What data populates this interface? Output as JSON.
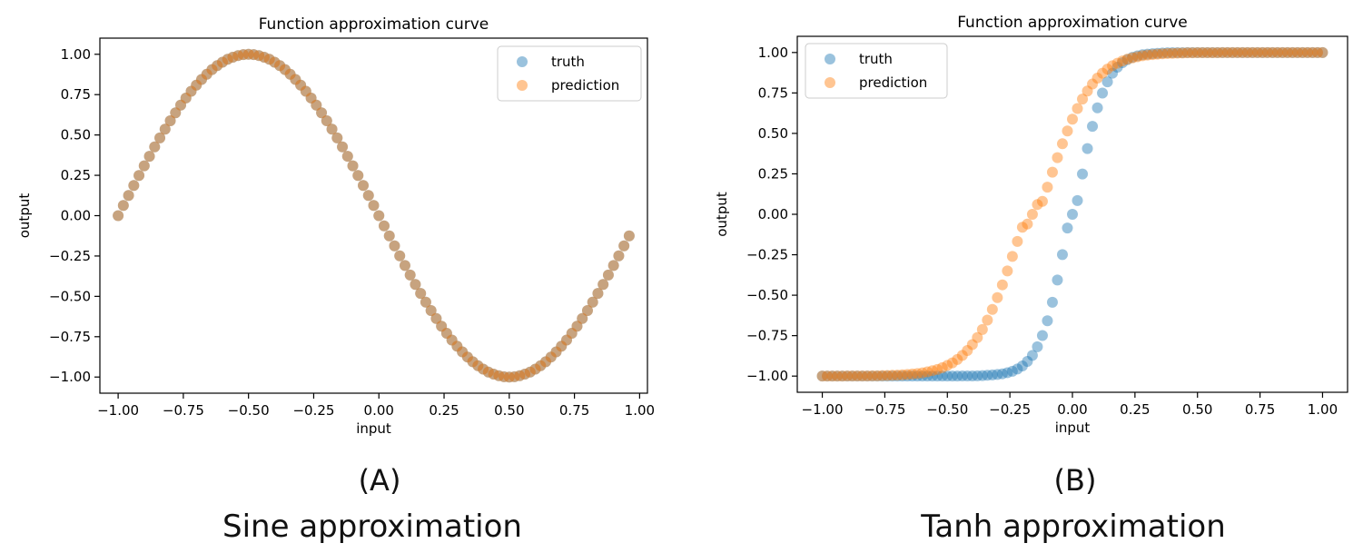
{
  "colors": {
    "truth": "#1f77b4",
    "prediction": "#ff7f0e",
    "axis": "#000000"
  },
  "captions": [
    {
      "letter": "(A)",
      "text": "Sine approximation"
    },
    {
      "letter": "(B)",
      "text": "Tanh approximation"
    }
  ],
  "chart_data": [
    {
      "type": "scatter",
      "title": "Function approximation curve",
      "xlabel": "input",
      "ylabel": "output",
      "xlim": [
        -1.07,
        1.03
      ],
      "ylim": [
        -1.1,
        1.1
      ],
      "xticks": [
        -1.0,
        -0.75,
        -0.5,
        -0.25,
        0.0,
        0.25,
        0.5,
        0.75,
        1.0
      ],
      "xtick_labels": [
        "−1.00",
        "−0.75",
        "−0.50",
        "−0.25",
        "0.00",
        "0.25",
        "0.50",
        "0.75",
        "1.00"
      ],
      "yticks": [
        -1.0,
        -0.75,
        -0.5,
        -0.25,
        0.0,
        0.25,
        0.5,
        0.75,
        1.0
      ],
      "ytick_labels": [
        "−1.00",
        "−0.75",
        "−0.50",
        "−0.25",
        "0.00",
        "0.25",
        "0.50",
        "0.75",
        "1.00"
      ],
      "legend_position": "top-right",
      "x": [
        -1.0,
        -0.98,
        -0.96,
        -0.94,
        -0.92,
        -0.9,
        -0.88,
        -0.86,
        -0.84,
        -0.82,
        -0.8,
        -0.78,
        -0.76,
        -0.74,
        -0.72,
        -0.7,
        -0.68,
        -0.66,
        -0.64,
        -0.62,
        -0.6,
        -0.58,
        -0.56,
        -0.54,
        -0.52,
        -0.5,
        -0.48,
        -0.46,
        -0.44,
        -0.42,
        -0.4,
        -0.38,
        -0.36,
        -0.34,
        -0.32,
        -0.3,
        -0.28,
        -0.26,
        -0.24,
        -0.22,
        -0.2,
        -0.18,
        -0.16,
        -0.14,
        -0.12,
        -0.1,
        -0.08,
        -0.06,
        -0.04,
        -0.02,
        0.0,
        0.02,
        0.04,
        0.06,
        0.08,
        0.1,
        0.12,
        0.14,
        0.16,
        0.18,
        0.2,
        0.22,
        0.24,
        0.26,
        0.28,
        0.3,
        0.32,
        0.34,
        0.36,
        0.38,
        0.4,
        0.42,
        0.44,
        0.46,
        0.48,
        0.5,
        0.52,
        0.54,
        0.56,
        0.58,
        0.6,
        0.62,
        0.64,
        0.66,
        0.68,
        0.7,
        0.72,
        0.74,
        0.76,
        0.78,
        0.8,
        0.82,
        0.84,
        0.86,
        0.88,
        0.9,
        0.92,
        0.94,
        0.96
      ],
      "series": [
        {
          "name": "truth",
          "values": [
            0.0,
            0.063,
            0.125,
            0.187,
            0.249,
            0.309,
            0.368,
            0.426,
            0.482,
            0.536,
            0.588,
            0.637,
            0.685,
            0.729,
            0.771,
            0.809,
            0.844,
            0.876,
            0.905,
            0.93,
            0.951,
            0.969,
            0.982,
            0.992,
            0.998,
            1.0,
            0.998,
            0.992,
            0.982,
            0.969,
            0.951,
            0.93,
            0.905,
            0.876,
            0.844,
            0.809,
            0.771,
            0.729,
            0.685,
            0.637,
            0.588,
            0.536,
            0.482,
            0.426,
            0.368,
            0.309,
            0.249,
            0.187,
            0.125,
            0.063,
            0.0,
            -0.063,
            -0.125,
            -0.187,
            -0.249,
            -0.309,
            -0.368,
            -0.426,
            -0.482,
            -0.536,
            -0.588,
            -0.637,
            -0.685,
            -0.729,
            -0.771,
            -0.809,
            -0.844,
            -0.876,
            -0.905,
            -0.93,
            -0.951,
            -0.969,
            -0.982,
            -0.992,
            -0.998,
            -1.0,
            -0.998,
            -0.992,
            -0.982,
            -0.969,
            -0.951,
            -0.93,
            -0.905,
            -0.876,
            -0.844,
            -0.809,
            -0.771,
            -0.729,
            -0.685,
            -0.637,
            -0.588,
            -0.536,
            -0.482,
            -0.426,
            -0.368,
            -0.309,
            -0.249,
            -0.187,
            -0.125
          ]
        },
        {
          "name": "prediction",
          "values": [
            0.0,
            0.063,
            0.125,
            0.187,
            0.249,
            0.309,
            0.368,
            0.426,
            0.482,
            0.536,
            0.588,
            0.637,
            0.685,
            0.729,
            0.771,
            0.809,
            0.844,
            0.876,
            0.905,
            0.93,
            0.951,
            0.969,
            0.982,
            0.992,
            0.998,
            1.0,
            0.998,
            0.992,
            0.982,
            0.969,
            0.951,
            0.93,
            0.905,
            0.876,
            0.844,
            0.809,
            0.771,
            0.729,
            0.685,
            0.637,
            0.588,
            0.536,
            0.482,
            0.426,
            0.368,
            0.309,
            0.249,
            0.187,
            0.125,
            0.063,
            0.0,
            -0.063,
            -0.125,
            -0.187,
            -0.249,
            -0.309,
            -0.368,
            -0.426,
            -0.482,
            -0.536,
            -0.588,
            -0.637,
            -0.685,
            -0.729,
            -0.771,
            -0.809,
            -0.844,
            -0.876,
            -0.905,
            -0.93,
            -0.951,
            -0.969,
            -0.982,
            -0.992,
            -0.998,
            -1.0,
            -0.998,
            -0.992,
            -0.982,
            -0.969,
            -0.951,
            -0.93,
            -0.905,
            -0.876,
            -0.844,
            -0.809,
            -0.771,
            -0.729,
            -0.685,
            -0.637,
            -0.588,
            -0.536,
            -0.482,
            -0.426,
            -0.368,
            -0.309,
            -0.249,
            -0.187,
            -0.125
          ]
        }
      ]
    },
    {
      "type": "scatter",
      "title": "Function approximation curve",
      "xlabel": "input",
      "ylabel": "output",
      "xlim": [
        -1.1,
        1.1
      ],
      "ylim": [
        -1.1,
        1.1
      ],
      "xticks": [
        -1.0,
        -0.75,
        -0.5,
        -0.25,
        0.0,
        0.25,
        0.5,
        0.75,
        1.0
      ],
      "xtick_labels": [
        "−1.00",
        "−0.75",
        "−0.50",
        "−0.25",
        "0.00",
        "0.25",
        "0.50",
        "0.75",
        "1.00"
      ],
      "yticks": [
        -1.0,
        -0.75,
        -0.5,
        -0.25,
        0.0,
        0.25,
        0.5,
        0.75,
        1.0
      ],
      "ytick_labels": [
        "−1.00",
        "−0.75",
        "−0.50",
        "−0.25",
        "0.00",
        "0.25",
        "0.50",
        "0.75",
        "1.00"
      ],
      "legend_position": "top-left",
      "x": [
        -1.0,
        -0.98,
        -0.96,
        -0.94,
        -0.92,
        -0.9,
        -0.88,
        -0.86,
        -0.84,
        -0.82,
        -0.8,
        -0.78,
        -0.76,
        -0.74,
        -0.72,
        -0.7,
        -0.68,
        -0.66,
        -0.64,
        -0.62,
        -0.6,
        -0.58,
        -0.56,
        -0.54,
        -0.52,
        -0.5,
        -0.48,
        -0.46,
        -0.44,
        -0.42,
        -0.4,
        -0.38,
        -0.36,
        -0.34,
        -0.32,
        -0.3,
        -0.28,
        -0.26,
        -0.24,
        -0.22,
        -0.2,
        -0.18,
        -0.16,
        -0.14,
        -0.12,
        -0.1,
        -0.08,
        -0.06,
        -0.04,
        -0.02,
        0.0,
        0.02,
        0.04,
        0.06,
        0.08,
        0.1,
        0.12,
        0.14,
        0.16,
        0.18,
        0.2,
        0.22,
        0.24,
        0.26,
        0.28,
        0.3,
        0.32,
        0.34,
        0.36,
        0.38,
        0.4,
        0.42,
        0.44,
        0.46,
        0.48,
        0.5,
        0.52,
        0.54,
        0.56,
        0.58,
        0.6,
        0.62,
        0.64,
        0.66,
        0.68,
        0.7,
        0.72,
        0.74,
        0.76,
        0.78,
        0.8,
        0.82,
        0.84,
        0.86,
        0.88,
        0.9,
        0.92,
        0.94,
        0.96,
        0.98,
        1.0
      ],
      "series": [
        {
          "name": "truth",
          "values": [
            -1.0,
            -1.0,
            -1.0,
            -1.0,
            -1.0,
            -1.0,
            -1.0,
            -1.0,
            -1.0,
            -1.0,
            -1.0,
            -1.0,
            -1.0,
            -1.0,
            -1.0,
            -1.0,
            -1.0,
            -1.0,
            -1.0,
            -1.0,
            -1.0,
            -1.0,
            -1.0,
            -1.0,
            -1.0,
            -1.0,
            -1.0,
            -1.0,
            -0.999,
            -0.999,
            -0.999,
            -0.998,
            -0.997,
            -0.995,
            -0.993,
            -0.99,
            -0.986,
            -0.979,
            -0.97,
            -0.956,
            -0.937,
            -0.909,
            -0.872,
            -0.819,
            -0.749,
            -0.658,
            -0.544,
            -0.406,
            -0.249,
            -0.085,
            0.0,
            0.085,
            0.249,
            0.406,
            0.544,
            0.658,
            0.749,
            0.819,
            0.872,
            0.909,
            0.937,
            0.956,
            0.97,
            0.979,
            0.986,
            0.99,
            0.993,
            0.995,
            0.997,
            0.998,
            0.999,
            0.999,
            0.999,
            1.0,
            1.0,
            1.0,
            1.0,
            1.0,
            1.0,
            1.0,
            1.0,
            1.0,
            1.0,
            1.0,
            1.0,
            1.0,
            1.0,
            1.0,
            1.0,
            1.0,
            1.0,
            1.0,
            1.0,
            1.0,
            1.0,
            1.0,
            1.0,
            1.0,
            1.0,
            1.0,
            1.0
          ]
        },
        {
          "name": "prediction",
          "values": [
            -1.0,
            -1.0,
            -1.0,
            -1.0,
            -1.0,
            -0.999,
            -0.999,
            -0.999,
            -0.999,
            -0.999,
            -0.998,
            -0.998,
            -0.997,
            -0.996,
            -0.995,
            -0.994,
            -0.992,
            -0.99,
            -0.987,
            -0.984,
            -0.98,
            -0.974,
            -0.967,
            -0.959,
            -0.948,
            -0.934,
            -0.918,
            -0.897,
            -0.872,
            -0.842,
            -0.805,
            -0.762,
            -0.712,
            -0.654,
            -0.588,
            -0.515,
            -0.436,
            -0.35,
            -0.26,
            -0.168,
            -0.08,
            -0.06,
            0.0,
            0.06,
            0.08,
            0.168,
            0.26,
            0.35,
            0.436,
            0.515,
            0.588,
            0.654,
            0.712,
            0.762,
            0.805,
            0.842,
            0.872,
            0.897,
            0.918,
            0.934,
            0.948,
            0.959,
            0.967,
            0.974,
            0.98,
            0.984,
            0.987,
            0.99,
            0.992,
            0.994,
            0.995,
            0.996,
            0.997,
            0.998,
            0.998,
            0.999,
            0.999,
            0.999,
            0.999,
            0.999,
            1.0,
            1.0,
            1.0,
            1.0,
            1.0,
            1.0,
            1.0,
            1.0,
            1.0,
            1.0,
            1.0,
            1.0,
            1.0,
            1.0,
            1.0,
            1.0,
            1.0,
            1.0,
            1.0,
            1.0,
            1.0
          ]
        }
      ]
    }
  ]
}
